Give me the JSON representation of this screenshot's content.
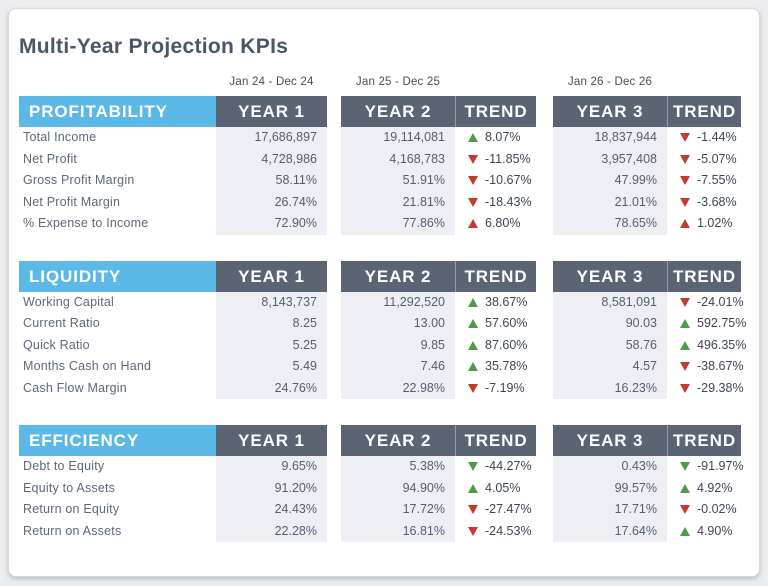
{
  "chart_data": {
    "type": "table",
    "title": "Multi-Year Projection KPIs",
    "periods": [
      "Jan 24 - Dec 24",
      "Jan 25 - Dec 25",
      "Jan 26 - Dec 26"
    ],
    "columns": {
      "year1": "YEAR 1",
      "year2": "YEAR 2",
      "year3": "YEAR 3",
      "trend": "TREND"
    },
    "colors": {
      "section_header_blue": "#5bb8e7",
      "column_header_dark": "#5a6473",
      "positive_green": "#4e9b48",
      "negative_red": "#c23b2e",
      "year_column_bg": "#edeff4",
      "title_text": "#4a5668"
    },
    "sections": [
      {
        "name": "PROFITABILITY",
        "rows": [
          {
            "label": "Total Income",
            "y1": "17,686,897",
            "y2": "19,114,081",
            "t2": "8.07%",
            "t2_icon": "up-green",
            "y3": "18,837,944",
            "t3": "-1.44%",
            "t3_icon": "down-red"
          },
          {
            "label": "Net Profit",
            "y1": "4,728,986",
            "y2": "4,168,783",
            "t2": "-11.85%",
            "t2_icon": "down-red",
            "y3": "3,957,408",
            "t3": "-5.07%",
            "t3_icon": "down-red"
          },
          {
            "label": "Gross Profit Margin",
            "y1": "58.11%",
            "y2": "51.91%",
            "t2": "-10.67%",
            "t2_icon": "down-red",
            "y3": "47.99%",
            "t3": "-7.55%",
            "t3_icon": "down-red"
          },
          {
            "label": "Net Profit Margin",
            "y1": "26.74%",
            "y2": "21.81%",
            "t2": "-18.43%",
            "t2_icon": "down-red",
            "y3": "21.01%",
            "t3": "-3.68%",
            "t3_icon": "down-red"
          },
          {
            "label": "% Expense to Income",
            "y1": "72.90%",
            "y2": "77.86%",
            "t2": "6.80%",
            "t2_icon": "up-red",
            "y3": "78.65%",
            "t3": "1.02%",
            "t3_icon": "up-red"
          }
        ]
      },
      {
        "name": "LIQUIDITY",
        "rows": [
          {
            "label": "Working Capital",
            "y1": "8,143,737",
            "y2": "11,292,520",
            "t2": "38.67%",
            "t2_icon": "up-green",
            "y3": "8,581,091",
            "t3": "-24.01%",
            "t3_icon": "down-red"
          },
          {
            "label": "Current Ratio",
            "y1": "8.25",
            "y2": "13.00",
            "t2": "57.60%",
            "t2_icon": "up-green",
            "y3": "90.03",
            "t3": "592.75%",
            "t3_icon": "up-green"
          },
          {
            "label": "Quick Ratio",
            "y1": "5.25",
            "y2": "9.85",
            "t2": "87.60%",
            "t2_icon": "up-green",
            "y3": "58.76",
            "t3": "496.35%",
            "t3_icon": "up-green"
          },
          {
            "label": "Months Cash on Hand",
            "y1": "5.49",
            "y2": "7.46",
            "t2": "35.78%",
            "t2_icon": "up-green",
            "y3": "4.57",
            "t3": "-38.67%",
            "t3_icon": "down-red"
          },
          {
            "label": "Cash Flow Margin",
            "y1": "24.76%",
            "y2": "22.98%",
            "t2": "-7.19%",
            "t2_icon": "down-red",
            "y3": "16.23%",
            "t3": "-29.38%",
            "t3_icon": "down-red"
          }
        ]
      },
      {
        "name": "EFFICIENCY",
        "rows": [
          {
            "label": "Debt to Equity",
            "y1": "9.65%",
            "y2": "5.38%",
            "t2": "-44.27%",
            "t2_icon": "down-green",
            "y3": "0.43%",
            "t3": "-91.97%",
            "t3_icon": "down-green"
          },
          {
            "label": "Equity to Assets",
            "y1": "91.20%",
            "y2": "94.90%",
            "t2": "4.05%",
            "t2_icon": "up-green",
            "y3": "99.57%",
            "t3": "4.92%",
            "t3_icon": "up-green"
          },
          {
            "label": "Return on Equity",
            "y1": "24.43%",
            "y2": "17.72%",
            "t2": "-27.47%",
            "t2_icon": "down-red",
            "y3": "17.71%",
            "t3": "-0.02%",
            "t3_icon": "down-red"
          },
          {
            "label": "Return on Assets",
            "y1": "22.28%",
            "y2": "16.81%",
            "t2": "-24.53%",
            "t2_icon": "down-red",
            "y3": "17.64%",
            "t3": "4.90%",
            "t3_icon": "up-green"
          }
        ]
      }
    ]
  }
}
